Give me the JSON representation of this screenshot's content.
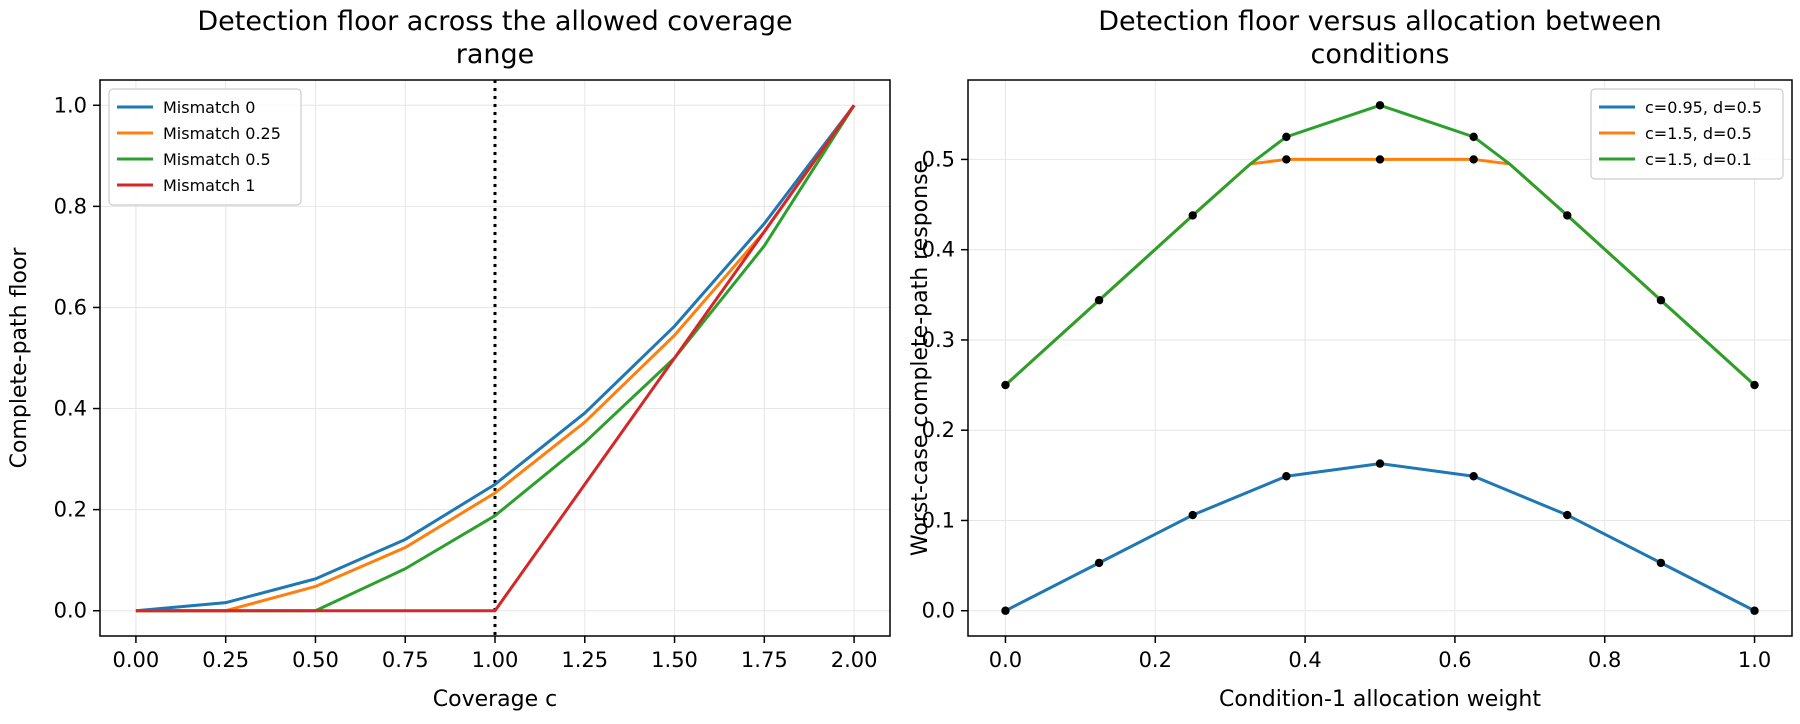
{
  "chart_data": [
    {
      "type": "line",
      "title": "Detection floor across the allowed coverage range",
      "title_lines": [
        "Detection floor across the allowed coverage",
        "range"
      ],
      "xlabel": "Coverage c",
      "ylabel": "Complete-path floor",
      "xlim": [
        -0.1,
        2.1
      ],
      "ylim": [
        -0.05,
        1.05
      ],
      "xticks": [
        0.0,
        0.25,
        0.5,
        0.75,
        1.0,
        1.25,
        1.5,
        1.75,
        2.0
      ],
      "xtick_labels": [
        "0.00",
        "0.25",
        "0.50",
        "0.75",
        "1.00",
        "1.25",
        "1.50",
        "1.75",
        "2.00"
      ],
      "yticks": [
        0.0,
        0.2,
        0.4,
        0.6,
        0.8,
        1.0
      ],
      "ytick_labels": [
        "0.0",
        "0.2",
        "0.4",
        "0.6",
        "0.8",
        "1.0"
      ],
      "grid": true,
      "legend_position": "top-left",
      "annotations": [
        {
          "type": "vertical-dotted-line",
          "x": 1.0,
          "color": "#000000"
        }
      ],
      "series": [
        {
          "name": "Mismatch 0",
          "color": "#1f77b4",
          "x": [
            0.0,
            0.25,
            0.5,
            0.75,
            1.0,
            1.25,
            1.5,
            1.75,
            2.0
          ],
          "y": [
            0.0,
            0.016,
            0.063,
            0.141,
            0.25,
            0.391,
            0.563,
            0.766,
            1.0
          ]
        },
        {
          "name": "Mismatch 0.25",
          "color": "#ff7f0e",
          "x": [
            0.0,
            0.25,
            0.5,
            0.75,
            1.0,
            1.25,
            1.5,
            1.75,
            2.0
          ],
          "y": [
            0.0,
            0.0,
            0.048,
            0.125,
            0.233,
            0.373,
            0.545,
            0.75,
            1.0
          ]
        },
        {
          "name": "Mismatch 0.5",
          "color": "#2ca02c",
          "x": [
            0.0,
            0.5,
            0.75,
            1.0,
            1.25,
            1.5,
            1.75,
            2.0
          ],
          "y": [
            0.0,
            0.0,
            0.083,
            0.188,
            0.333,
            0.5,
            0.722,
            1.0
          ]
        },
        {
          "name": "Mismatch 1",
          "color": "#d62728",
          "x": [
            0.0,
            1.0,
            2.0
          ],
          "y": [
            0.0,
            0.0,
            1.0
          ]
        }
      ]
    },
    {
      "type": "line",
      "title": "Detection floor versus allocation between conditions",
      "title_lines": [
        "Detection floor versus allocation between",
        "conditions"
      ],
      "xlabel": "Condition-1 allocation weight",
      "ylabel": "Worst-case complete-path response",
      "xlim": [
        -0.05,
        1.05
      ],
      "ylim": [
        -0.028,
        0.588
      ],
      "xticks": [
        0.0,
        0.2,
        0.4,
        0.6,
        0.8,
        1.0
      ],
      "xtick_labels": [
        "0.0",
        "0.2",
        "0.4",
        "0.6",
        "0.8",
        "1.0"
      ],
      "yticks": [
        0.0,
        0.1,
        0.2,
        0.3,
        0.4,
        0.5
      ],
      "ytick_labels": [
        "0.0",
        "0.1",
        "0.2",
        "0.3",
        "0.4",
        "0.5"
      ],
      "grid": true,
      "legend_position": "top-right",
      "series": [
        {
          "name": "c=0.95, d=0.5",
          "color": "#1f77b4",
          "x": [
            0.0,
            0.125,
            0.25,
            0.375,
            0.5,
            0.625,
            0.75,
            0.875,
            1.0
          ],
          "y": [
            0.0,
            0.053,
            0.106,
            0.149,
            0.163,
            0.149,
            0.106,
            0.053,
            0.0
          ],
          "markers": [
            0.0,
            0.125,
            0.25,
            0.375,
            0.5,
            0.625,
            0.75,
            0.875,
            1.0
          ]
        },
        {
          "name": "c=1.5, d=0.5",
          "color": "#ff7f0e",
          "x": [
            0.0,
            0.125,
            0.25,
            0.327,
            0.375,
            0.5,
            0.625,
            0.673,
            0.75,
            0.875,
            1.0
          ],
          "y": [
            0.25,
            0.344,
            0.438,
            0.495,
            0.5,
            0.5,
            0.5,
            0.495,
            0.438,
            0.344,
            0.25
          ],
          "markers": [
            0.375,
            0.5,
            0.625
          ]
        },
        {
          "name": "c=1.5, d=0.1",
          "color": "#2ca02c",
          "x": [
            0.0,
            0.125,
            0.25,
            0.327,
            0.375,
            0.5,
            0.625,
            0.673,
            0.75,
            0.875,
            1.0
          ],
          "y": [
            0.25,
            0.344,
            0.438,
            0.495,
            0.525,
            0.56,
            0.525,
            0.495,
            0.438,
            0.344,
            0.25
          ],
          "markers": [
            0.0,
            0.125,
            0.25,
            0.375,
            0.5,
            0.625,
            0.75,
            0.875,
            1.0
          ]
        }
      ]
    }
  ]
}
